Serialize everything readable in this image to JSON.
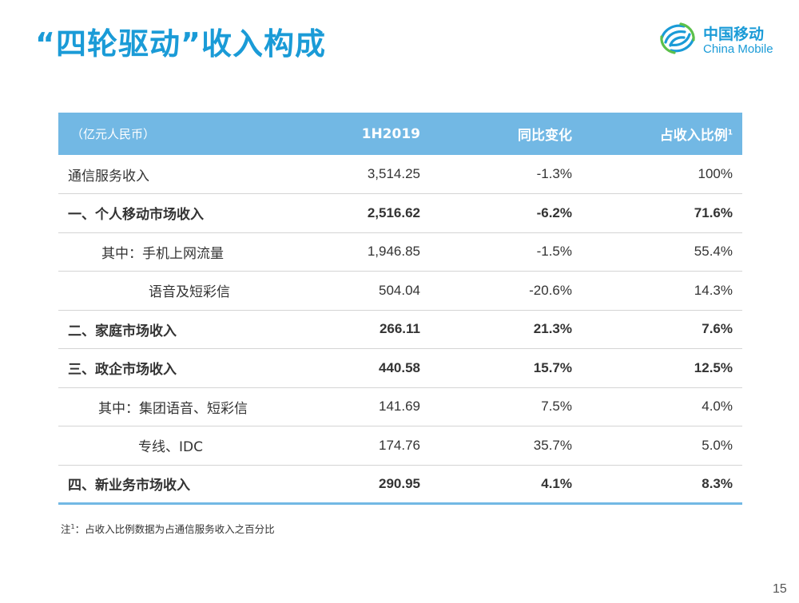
{
  "slide": {
    "title": "“四轮驱动”收入构成",
    "page_number": "15"
  },
  "logo": {
    "name_cn": "中国移动",
    "name_en": "China Mobile",
    "color": "#1a9bd7"
  },
  "table": {
    "header": {
      "unit": "（亿元人民币）",
      "col_1h2019": "1H2019",
      "col_yoy": "同比变化",
      "col_share": "占收入比例",
      "col_share_sup": "1"
    },
    "header_color": "#72b8e4",
    "rows": [
      {
        "label": "通信服务收入",
        "value": "3,514.25",
        "yoy": "-1.3%",
        "share": "100%"
      },
      {
        "label": "一、个人移动市场收入",
        "value": "2,516.62",
        "yoy": "-6.2%",
        "share": "71.6%"
      },
      {
        "label": "其中：手机上网流量",
        "value": "1,946.85",
        "yoy": "-1.5%",
        "share": "55.4%"
      },
      {
        "label": "语音及短彩信",
        "value": "504.04",
        "yoy": "-20.6%",
        "share": "14.3%"
      },
      {
        "label": "二、家庭市场收入",
        "value": "266.11",
        "yoy": "21.3%",
        "share": "7.6%"
      },
      {
        "label": "三、政企市场收入",
        "value": "440.58",
        "yoy": "15.7%",
        "share": "12.5%"
      },
      {
        "label": "其中：集团语音、短彩信",
        "value": "141.69",
        "yoy": "7.5%",
        "share": "4.0%"
      },
      {
        "label": "专线、IDC",
        "value": "174.76",
        "yoy": "35.7%",
        "share": "5.0%"
      },
      {
        "label": "四、新业务市场收入",
        "value": "290.95",
        "yoy": "4.1%",
        "share": "8.3%"
      }
    ]
  },
  "footnote": {
    "prefix": "注",
    "sup": "1",
    "text": "：占收入比例数据为占通信服务收入之百分比"
  }
}
